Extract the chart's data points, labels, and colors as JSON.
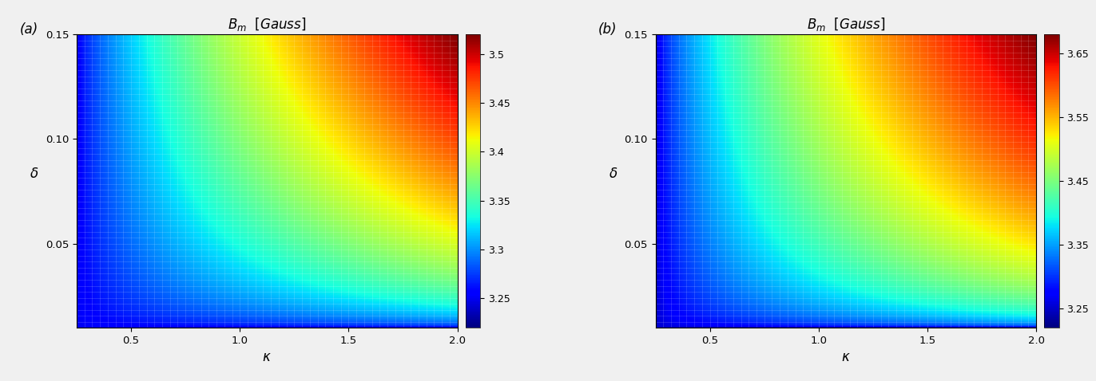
{
  "kappa_min": 0.25,
  "kappa_max": 2.0,
  "delta_min": 0.01,
  "delta_max": 0.15,
  "n_kappa": 300,
  "n_delta": 300,
  "panel_a": {
    "label": "(a)",
    "title": "$B_m$  $[Gauss]$",
    "vmin": 3.22,
    "vmax": 3.52,
    "cbar_ticks": [
      3.25,
      3.3,
      3.35,
      3.4,
      3.45,
      3.5
    ],
    "cbar_ticklabels": [
      "3.25",
      "3.3",
      "3.35",
      "3.4",
      "3.45",
      "3.5"
    ],
    "power_kappa": 1.0,
    "power_delta": 1.0,
    "scale": 0.27,
    "kappa_shift": 0.0,
    "delta_shift": 0.0
  },
  "panel_b": {
    "label": "(b)",
    "title": "$B_m$  $[Gauss]$",
    "vmin": 3.22,
    "vmax": 3.68,
    "cbar_ticks": [
      3.25,
      3.35,
      3.45,
      3.55,
      3.65
    ],
    "cbar_ticklabels": [
      "3.25",
      "3.35",
      "3.45",
      "3.55",
      "3.65"
    ],
    "power_kappa": 1.0,
    "power_delta": 1.0,
    "scale": 0.43,
    "kappa_shift": 0.0,
    "delta_shift": 0.0
  },
  "xlabel": "$\\kappa$",
  "ylabel": "$\\delta$",
  "xticks": [
    0.5,
    1.0,
    1.5,
    2.0
  ],
  "yticks": [
    0.05,
    0.1,
    0.15
  ],
  "colormap": "jet",
  "background_color": "#f0f0f0",
  "grid_color": "#ffffff",
  "grid_alpha": 0.25,
  "grid_linewidth": 0.4,
  "n_grid_kappa": 50,
  "n_grid_delta": 50
}
